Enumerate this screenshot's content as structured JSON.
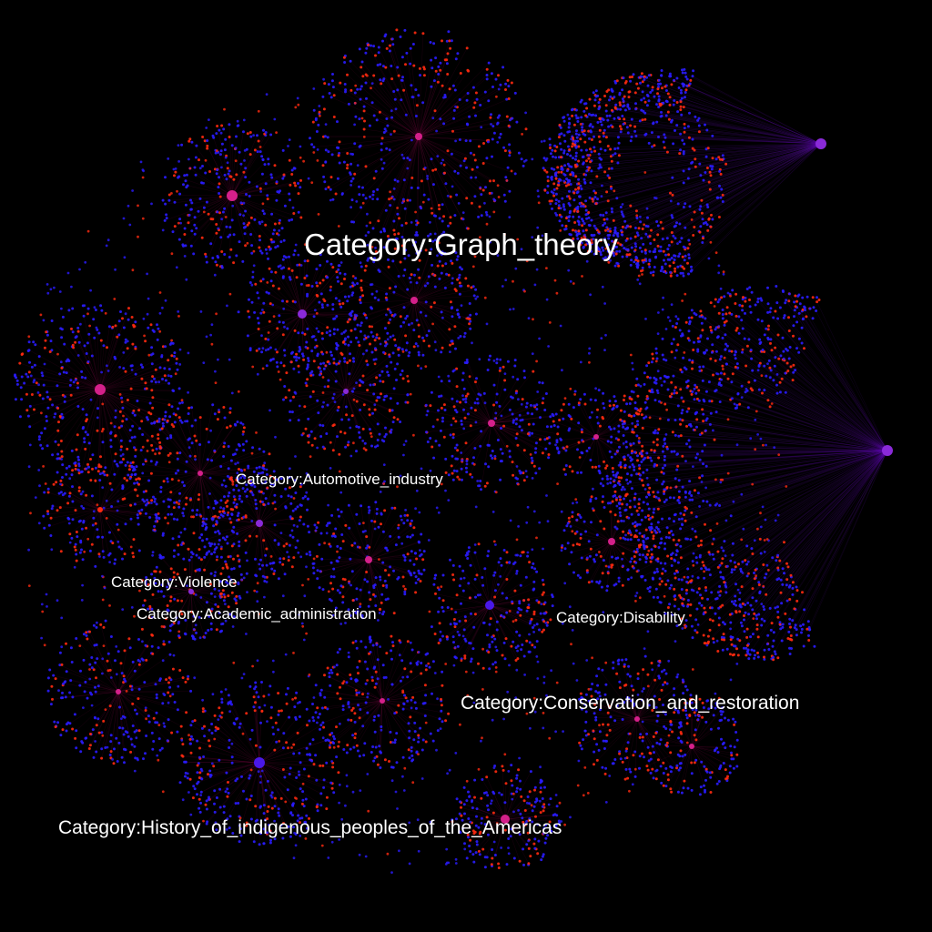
{
  "graph": {
    "background": "#000000",
    "node_colors": {
      "blue": "#2a1cff",
      "red": "#ff2a10",
      "magenta": "#d4208a",
      "violet": "#8a2ad8",
      "indigo": "#4a18e8"
    },
    "edge_colors": {
      "magenta": "#c0106a",
      "violet": "#6a10c8"
    }
  },
  "labels": [
    {
      "id": "graph-theory",
      "text": "Category:Graph_theory"
    },
    {
      "id": "automotive-industry",
      "text": "Category:Automotive_industry"
    },
    {
      "id": "violence",
      "text": "Category:Violence"
    },
    {
      "id": "academic-administration",
      "text": "Category:Academic_administration"
    },
    {
      "id": "disability",
      "text": "Category:Disability"
    },
    {
      "id": "conservation-and-restoration",
      "text": "Category:Conservation_and_restoration"
    },
    {
      "id": "history-of-indigenous-peoples",
      "text": "Category:History_of_indigenous_peoples_of_the_Americas"
    }
  ]
}
